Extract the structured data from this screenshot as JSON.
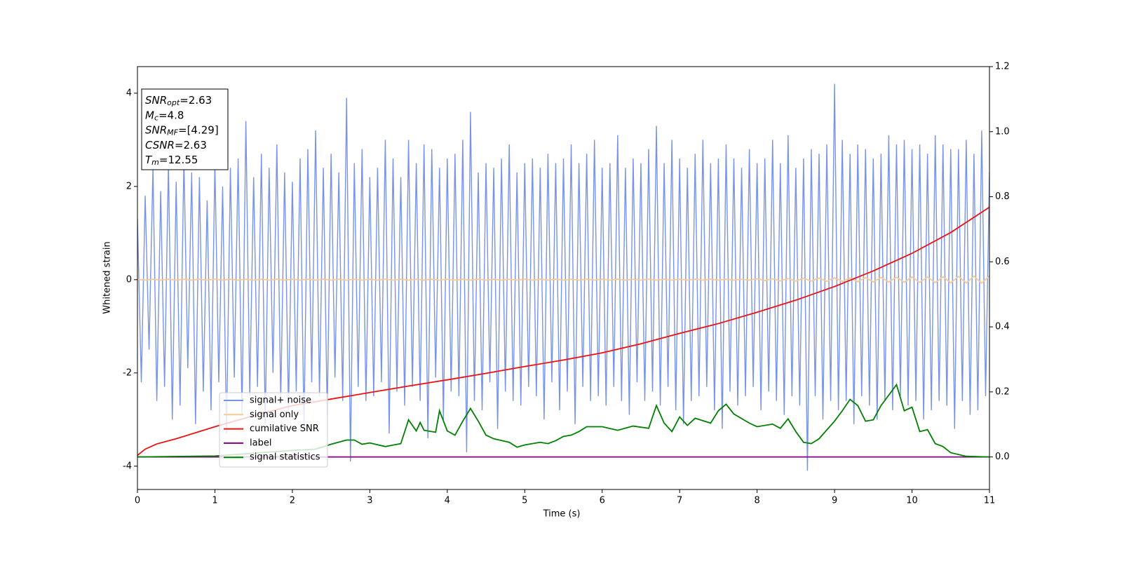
{
  "chart_data": {
    "type": "line",
    "xlabel": "Time (s)",
    "ylabel": "Whitened strain",
    "xlim": [
      0,
      11
    ],
    "xticks": [
      0,
      1,
      2,
      3,
      4,
      5,
      6,
      7,
      8,
      9,
      10,
      11
    ],
    "ylim": [
      -4.5,
      4.57
    ],
    "yticks": [
      -4,
      -2,
      0,
      2,
      4
    ],
    "y2lim": [
      -0.1,
      1.2
    ],
    "y2ticks": [
      {
        "value": 0,
        "label": "0.0"
      },
      0.2,
      0.4,
      0.6,
      0.8,
      {
        "value": 1,
        "label": "1.0"
      },
      1.2
    ],
    "annotation": [
      {
        "text": "SNR",
        "sub": "opt",
        "rest": "=2.63"
      },
      {
        "text": "M",
        "sub": "c",
        "rest": "=4.8"
      },
      {
        "text": "SNR",
        "sub": "MF",
        "rest": "=[4.29]"
      },
      {
        "text": "CSNR",
        "rest": "=2.63"
      },
      {
        "text": "T",
        "sub": "m",
        "rest": "=12.55"
      }
    ],
    "series": [
      {
        "name": "signal+ noise",
        "color": "#7893e8",
        "x": [
          0,
          0.05,
          0.1,
          0.15,
          0.2,
          0.25,
          0.3,
          0.35,
          0.4,
          0.45,
          0.5,
          0.55,
          0.6,
          0.65,
          0.7,
          0.75,
          0.8,
          0.85,
          0.9,
          0.95,
          1,
          1.05,
          1.1,
          1.15,
          1.2,
          1.25,
          1.3,
          1.35,
          1.4,
          1.45,
          1.5,
          1.55,
          1.6,
          1.65,
          1.7,
          1.75,
          1.8,
          1.85,
          1.9,
          1.95,
          2,
          2.05,
          2.1,
          2.15,
          2.2,
          2.25,
          2.3,
          2.35,
          2.4,
          2.45,
          2.5,
          2.55,
          2.6,
          2.65,
          2.7,
          2.75,
          2.8,
          2.85,
          2.9,
          2.95,
          3,
          3.05,
          3.1,
          3.15,
          3.2,
          3.25,
          3.3,
          3.35,
          3.4,
          3.45,
          3.5,
          3.55,
          3.6,
          3.65,
          3.7,
          3.75,
          3.8,
          3.85,
          3.9,
          3.95,
          4,
          4.05,
          4.1,
          4.15,
          4.2,
          4.25,
          4.3,
          4.35,
          4.4,
          4.45,
          4.5,
          4.55,
          4.6,
          4.65,
          4.7,
          4.75,
          4.8,
          4.85,
          4.9,
          4.95,
          5,
          5.05,
          5.1,
          5.15,
          5.2,
          5.25,
          5.3,
          5.35,
          5.4,
          5.45,
          5.5,
          5.55,
          5.6,
          5.65,
          5.7,
          5.75,
          5.8,
          5.85,
          5.9,
          5.95,
          6,
          6.05,
          6.1,
          6.15,
          6.2,
          6.25,
          6.3,
          6.35,
          6.4,
          6.45,
          6.5,
          6.55,
          6.6,
          6.65,
          6.7,
          6.75,
          6.8,
          6.85,
          6.9,
          6.95,
          7,
          7.05,
          7.1,
          7.15,
          7.2,
          7.25,
          7.3,
          7.35,
          7.4,
          7.45,
          7.5,
          7.55,
          7.6,
          7.65,
          7.7,
          7.75,
          7.8,
          7.85,
          7.9,
          7.95,
          8,
          8.05,
          8.1,
          8.15,
          8.2,
          8.25,
          8.3,
          8.35,
          8.4,
          8.45,
          8.5,
          8.55,
          8.6,
          8.65,
          8.7,
          8.75,
          8.8,
          8.85,
          8.9,
          8.95,
          9,
          9.05,
          9.1,
          9.15,
          9.2,
          9.25,
          9.3,
          9.35,
          9.4,
          9.45,
          9.5,
          9.55,
          9.6,
          9.65,
          9.7,
          9.75,
          9.8,
          9.85,
          9.9,
          9.95,
          10,
          10.05,
          10.1,
          10.15,
          10.2,
          10.25,
          10.3,
          10.35,
          10.4,
          10.45,
          10.5,
          10.55,
          10.6,
          10.65,
          10.7,
          10.75,
          10.8,
          10.85,
          10.9,
          10.95,
          11
        ],
        "values": [
          1.3,
          -2.2,
          1.8,
          -1.5,
          2.4,
          -2.6,
          1.9,
          -2.3,
          2.5,
          -3.0,
          2.1,
          -2.7,
          2.6,
          -1.9,
          2.3,
          -3.1,
          2.2,
          -2.4,
          1.7,
          -2.8,
          2.5,
          -2.2,
          2.0,
          -3.3,
          2.4,
          -2.1,
          2.6,
          -2.9,
          3.4,
          -2.5,
          2.2,
          -2.3,
          2.7,
          -3.1,
          2.4,
          -2.0,
          2.9,
          -2.6,
          2.3,
          -2.8,
          2.1,
          -2.4,
          2.6,
          -3.2,
          2.8,
          -2.2,
          3.2,
          -2.5,
          2.4,
          -2.9,
          2.7,
          -2.1,
          2.3,
          -2.6,
          3.9,
          -3.9,
          2.5,
          -2.3,
          2.8,
          -2.6,
          2.2,
          -2.5,
          2.4,
          -2.2,
          3.0,
          -3.3,
          2.6,
          -2.4,
          2.2,
          -2.7,
          3.0,
          -2.3,
          2.5,
          -2.6,
          2.9,
          -3.4,
          2.8,
          -2.1,
          2.4,
          -3.0,
          2.6,
          -2.4,
          2.7,
          -2.5,
          3.0,
          -3.7,
          3.6,
          -2.6,
          2.3,
          -2.8,
          2.5,
          -2.2,
          2.4,
          -3.2,
          2.6,
          -2.4,
          2.9,
          -2.6,
          2.3,
          -2.7,
          2.5,
          -2.3,
          2.6,
          -2.5,
          2.4,
          -3.0,
          2.7,
          -2.2,
          2.5,
          -2.8,
          2.6,
          -2.4,
          2.9,
          -3.1,
          2.5,
          -2.3,
          2.7,
          -2.6,
          3.0,
          -2.5,
          2.4,
          -2.7,
          2.5,
          -2.3,
          3.1,
          -2.6,
          2.4,
          -2.9,
          2.6,
          -2.2,
          2.5,
          -2.6,
          2.8,
          -2.4,
          3.3,
          -2.7,
          2.5,
          -2.3,
          3.0,
          -2.8,
          2.6,
          -3.1,
          2.4,
          -2.6,
          2.7,
          -2.5,
          3.0,
          -2.3,
          2.5,
          -2.8,
          2.6,
          -3.2,
          2.9,
          -2.4,
          2.6,
          -2.7,
          2.4,
          -2.5,
          2.8,
          -2.3,
          2.5,
          -2.8,
          2.6,
          -2.4,
          3.0,
          -2.6,
          2.5,
          -2.9,
          3.1,
          -2.5,
          2.4,
          -2.7,
          2.6,
          -4.1,
          2.8,
          -2.5,
          2.7,
          -3.0,
          2.9,
          -2.6,
          4.2,
          -2.8,
          3.0,
          -2.6,
          2.7,
          -3.1,
          2.9,
          -2.5,
          2.8,
          -2.7,
          2.6,
          -3.0,
          2.7,
          -2.6,
          3.1,
          -2.8,
          2.9,
          -2.5,
          3.0,
          -2.7,
          2.8,
          -2.6,
          2.9,
          -3.0,
          2.7,
          -2.8,
          3.1,
          -2.6,
          2.9,
          -2.7,
          2.8,
          -3.2,
          2.8,
          -2.6,
          3.0,
          -2.9,
          2.7,
          -2.8,
          3.2,
          -2.5,
          2.3
        ]
      },
      {
        "name": "signal only",
        "color": "#f9c98f",
        "x": [
          0,
          0.1,
          0.2,
          0.3,
          0.4,
          0.5,
          0.6,
          0.7,
          0.8,
          0.9,
          1,
          1.1,
          1.2,
          1.3,
          1.4,
          1.5,
          1.6,
          1.7,
          1.8,
          1.9,
          2,
          2.1,
          2.2,
          2.3,
          2.4,
          2.5,
          2.6,
          2.7,
          2.8,
          2.9,
          3,
          3.1,
          3.2,
          3.3,
          3.4,
          3.5,
          3.6,
          3.7,
          3.8,
          3.9,
          4,
          4.1,
          4.2,
          4.3,
          4.4,
          4.5,
          4.6,
          4.7,
          4.8,
          4.9,
          5,
          5.1,
          5.2,
          5.3,
          5.4,
          5.5,
          5.6,
          5.7,
          5.8,
          5.9,
          6,
          6.1,
          6.2,
          6.3,
          6.4,
          6.5,
          6.6,
          6.7,
          6.8,
          6.9,
          7,
          7.1,
          7.2,
          7.3,
          7.4,
          7.5,
          7.6,
          7.7,
          7.8,
          7.9,
          8,
          8.1,
          8.2,
          8.3,
          8.4,
          8.5,
          8.6,
          8.7,
          8.8,
          8.9,
          9,
          9.1,
          9.2,
          9.3,
          9.4,
          9.5,
          9.6,
          9.7,
          9.8,
          9.9,
          10,
          10.1,
          10.2,
          10.3,
          10.4,
          10.5,
          10.6,
          10.7,
          10.8,
          10.9,
          11
        ],
        "values": [
          0.01,
          -0.01,
          0.01,
          -0.01,
          0.01,
          -0.01,
          0.01,
          -0.01,
          0.01,
          -0.01,
          0.01,
          -0.01,
          0.01,
          -0.01,
          0.01,
          -0.01,
          0.01,
          -0.01,
          0.01,
          -0.01,
          0.01,
          -0.01,
          0.01,
          -0.01,
          0.01,
          -0.01,
          0.01,
          -0.01,
          0.01,
          -0.01,
          0.01,
          -0.01,
          0.01,
          -0.01,
          0.01,
          -0.01,
          0.01,
          -0.01,
          0.01,
          -0.01,
          0.01,
          -0.01,
          0.01,
          -0.01,
          0.01,
          -0.01,
          0.01,
          -0.01,
          0.01,
          -0.01,
          0.01,
          -0.01,
          0.01,
          -0.01,
          0.01,
          -0.01,
          0.01,
          -0.01,
          0.01,
          -0.01,
          0.01,
          -0.01,
          0.01,
          -0.01,
          0.01,
          -0.01,
          0.01,
          -0.01,
          0.01,
          -0.01,
          0.01,
          -0.01,
          0.01,
          -0.01,
          0.01,
          -0.01,
          0.01,
          -0.01,
          0.01,
          -0.01,
          0.02,
          -0.02,
          0.02,
          -0.025,
          0.025,
          -0.03,
          0.03,
          -0.03,
          0.035,
          -0.035,
          0.04,
          -0.04,
          0.04,
          -0.045,
          0.045,
          -0.05,
          0.05,
          -0.05,
          0.055,
          -0.055,
          0.06,
          -0.06,
          0.06,
          -0.065,
          0.065,
          -0.07,
          0.07,
          -0.07,
          0.075,
          -0.075,
          0.08
        ]
      },
      {
        "name": "cumilative SNR",
        "color": "#ee1111",
        "axis": "y2",
        "x": [
          0,
          0.1,
          0.25,
          0.5,
          1,
          1.5,
          2,
          2.5,
          3,
          3.5,
          4,
          4.5,
          5,
          5.5,
          6,
          6.5,
          7,
          7.5,
          8,
          8.5,
          9,
          9.5,
          10,
          10.5,
          11
        ],
        "values": [
          0.005,
          0.024,
          0.04,
          0.056,
          0.093,
          0.127,
          0.158,
          0.178,
          0.198,
          0.218,
          0.237,
          0.257,
          0.278,
          0.298,
          0.32,
          0.348,
          0.38,
          0.41,
          0.445,
          0.482,
          0.524,
          0.572,
          0.626,
          0.69,
          0.768
        ]
      },
      {
        "name": "label",
        "color": "#800080",
        "axis": "y2",
        "x": [
          0,
          11
        ],
        "values": [
          0,
          0
        ]
      },
      {
        "name": "signal statistics",
        "color": "#008000",
        "axis": "y2",
        "x": [
          0,
          1,
          2,
          2.3,
          2.5,
          2.7,
          2.8,
          2.9,
          3,
          3.2,
          3.4,
          3.5,
          3.6,
          3.65,
          3.7,
          3.85,
          3.9,
          4,
          4.1,
          4.2,
          4.3,
          4.4,
          4.5,
          4.6,
          4.8,
          4.9,
          5,
          5.2,
          5.3,
          5.4,
          5.5,
          5.6,
          5.7,
          5.8,
          5.9,
          6,
          6.2,
          6.4,
          6.6,
          6.7,
          6.8,
          6.9,
          7,
          7.1,
          7.2,
          7.4,
          7.5,
          7.6,
          7.7,
          7.9,
          8,
          8.2,
          8.3,
          8.4,
          8.5,
          8.6,
          8.7,
          8.8,
          9,
          9.1,
          9.2,
          9.3,
          9.4,
          9.5,
          9.6,
          9.8,
          9.9,
          10,
          10.1,
          10.2,
          10.3,
          10.4,
          10.5,
          10.7,
          11
        ],
        "values": [
          0,
          0.003,
          0.02,
          0.024,
          0.039,
          0.052,
          0.052,
          0.039,
          0.043,
          0.032,
          0.041,
          0.114,
          0.08,
          0.106,
          0.082,
          0.076,
          0.142,
          0.08,
          0.067,
          0.11,
          0.149,
          0.11,
          0.067,
          0.056,
          0.045,
          0.03,
          0.037,
          0.045,
          0.041,
          0.05,
          0.063,
          0.067,
          0.078,
          0.093,
          0.093,
          0.093,
          0.082,
          0.095,
          0.088,
          0.158,
          0.104,
          0.078,
          0.123,
          0.097,
          0.119,
          0.104,
          0.142,
          0.162,
          0.132,
          0.104,
          0.093,
          0.101,
          0.088,
          0.117,
          0.078,
          0.045,
          0.041,
          0.056,
          0.11,
          0.142,
          0.177,
          0.158,
          0.11,
          0.114,
          0.158,
          0.222,
          0.142,
          0.153,
          0.078,
          0.084,
          0.041,
          0.032,
          0.013,
          0.002,
          0
        ]
      }
    ]
  }
}
